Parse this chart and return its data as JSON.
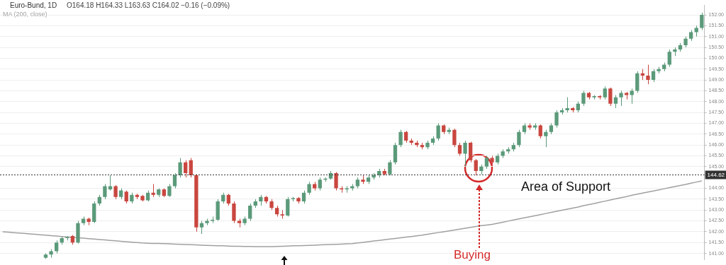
{
  "chart_data": {
    "type": "candlestick",
    "title": "Euro-Bund, 1D",
    "subtitle": "O164.18 H164.33 L163.63 C164.02 −0.16 (−0.09%)",
    "categories": [
      null,
      null,
      null,
      null,
      null,
      null,
      null,
      null,
      null,
      null,
      null,
      null,
      null,
      null,
      null,
      null,
      null,
      null,
      null,
      null,
      null,
      null,
      null,
      null,
      null,
      null,
      null,
      null,
      null,
      null,
      null,
      null,
      null,
      null,
      null,
      null,
      null,
      null,
      null,
      null,
      null,
      null,
      null,
      null,
      null,
      null,
      null,
      null,
      null,
      null,
      null,
      null,
      null,
      null,
      null,
      null,
      null,
      null,
      null,
      null,
      null,
      null,
      null,
      null,
      null,
      null,
      null,
      null,
      null,
      null,
      null,
      null,
      null,
      null,
      null,
      null,
      null,
      null,
      null,
      null,
      null,
      null,
      null,
      null,
      null,
      null,
      null,
      null,
      null,
      null,
      null,
      null,
      null,
      null,
      null,
      null,
      null,
      null,
      null,
      null,
      null,
      null,
      null,
      null,
      null,
      null,
      null,
      null,
      null,
      null,
      null,
      null,
      null,
      null,
      null,
      null,
      null,
      null,
      null,
      null,
      null,
      null,
      null,
      null,
      null,
      null,
      null,
      null,
      null,
      null,
      null
    ],
    "series": [
      {
        "colors": [
          null,
          null,
          null,
          null,
          null,
          null,
          null,
          null,
          "#5b9a7a",
          "#5b9a7a",
          "#5b9a7a",
          "#5b9a7a",
          "#5b9a7a",
          "#c9463f",
          "#5b9a7a",
          "#5b9a7a",
          "#c9463f",
          "#5b9a7a",
          "#5b9a7a",
          "#5b9a7a",
          "#5b9a7a",
          "#c9463f",
          "#5b9a7a",
          "#c9463f",
          "#5b9a7a",
          "#c9463f",
          "#c9463f",
          "#5b9a7a",
          "#c9463f",
          "#5b9a7a",
          "#c9463f",
          "#5b9a7a",
          "#5b9a7a",
          "#5b9a7a",
          "#c9463f",
          "#c9463f",
          "#c9463f",
          "#5b9a7a",
          "#5b9a7a",
          "#5b9a7a",
          "#5b9a7a",
          "#5b9a7a",
          "#c9463f",
          "#c9463f",
          "#c9463f",
          "#5b9a7a",
          "#5b9a7a",
          "#5b9a7a",
          "#5b9a7a",
          "#c9463f",
          "#c9463f",
          "#c9463f",
          "#c9463f",
          "#5b9a7a",
          "#5b9a7a",
          "#c9463f",
          "#5b9a7a",
          "#5b9a7a",
          "#c9463f",
          "#5b9a7a",
          "#5b9a7a",
          "#5b9a7a",
          "#c9463f",
          "#c9463f",
          "#5b9a7a",
          "#5b9a7a",
          "#5b9a7a",
          "#c9463f",
          "#5b9a7a",
          "#5b9a7a",
          "#5b9a7a",
          "#c9463f",
          "#5b9a7a",
          "#5b9a7a",
          "#5b9a7a",
          "#c9463f",
          "#c9463f",
          "#c9463f",
          "#c9463f",
          "#5b9a7a",
          "#5b9a7a",
          "#5b9a7a",
          "#c9463f",
          "#5b9a7a",
          "#c9463f",
          "#c9463f",
          "#5b9a7a",
          "#c9463f",
          "#c9463f",
          "#5b9a7a",
          "#5b9a7a",
          "#c9463f",
          "#5b9a7a",
          "#5b9a7a",
          "#5b9a7a",
          "#5b9a7a",
          "#5b9a7a",
          "#5b9a7a",
          "#c9463f",
          "#5b9a7a",
          "#c9463f",
          "#5b9a7a",
          "#5b9a7a",
          "#5b9a7a",
          "#5b9a7a",
          "#5b9a7a",
          "#c9463f",
          "#5b9a7a",
          "#5b9a7a",
          "#c9463f",
          "#5b9a7a",
          "#c9463f",
          "#5b9a7a",
          "#c9463f",
          "#5b9a7a",
          "#5b9a7a",
          "#c9463f",
          "#5b9a7a",
          "#5b9a7a",
          "#c9463f",
          "#c9463f",
          "#5b9a7a",
          "#5b9a7a",
          "#5b9a7a",
          "#5b9a7a",
          "#5b9a7a",
          "#5b9a7a",
          "#5b9a7a",
          "#5b9a7a",
          "#5b9a7a",
          "#5b9a7a"
        ],
        "ohlc": [
          null,
          null,
          null,
          null,
          null,
          null,
          null,
          null,
          [
            140.8,
            141.0,
            140.75,
            140.95
          ],
          [
            140.95,
            141.2,
            140.8,
            141.1
          ],
          [
            141.1,
            141.6,
            141.0,
            141.5
          ],
          [
            141.5,
            141.8,
            141.4,
            141.7
          ],
          [
            141.7,
            141.8,
            141.6,
            141.75
          ],
          [
            141.8,
            141.85,
            141.4,
            141.5
          ],
          [
            141.5,
            142.5,
            141.45,
            142.4
          ],
          [
            142.4,
            142.7,
            142.3,
            142.6
          ],
          [
            142.6,
            142.65,
            142.3,
            142.45
          ],
          [
            142.45,
            143.4,
            142.4,
            143.3
          ],
          [
            143.3,
            143.7,
            143.2,
            143.6
          ],
          [
            143.6,
            144.2,
            143.5,
            144.1
          ],
          [
            143.95,
            144.6,
            143.9,
            144.1
          ],
          [
            144.1,
            144.15,
            143.5,
            143.6
          ],
          [
            143.6,
            144.0,
            143.5,
            143.9
          ],
          [
            143.85,
            143.9,
            143.3,
            143.4
          ],
          [
            143.4,
            143.8,
            143.3,
            143.7
          ],
          [
            143.7,
            143.75,
            143.5,
            143.6
          ],
          [
            143.65,
            143.7,
            143.4,
            143.45
          ],
          [
            143.45,
            143.9,
            143.4,
            143.8
          ],
          [
            143.8,
            144.2,
            143.6,
            143.7
          ],
          [
            143.7,
            144.0,
            143.6,
            143.95
          ],
          [
            143.95,
            144.0,
            143.6,
            143.65
          ],
          [
            143.65,
            144.2,
            143.6,
            144.1
          ],
          [
            144.1,
            144.7,
            144.0,
            144.6
          ],
          [
            144.6,
            145.4,
            144.5,
            145.2
          ],
          [
            145.2,
            145.3,
            144.5,
            144.7
          ],
          [
            145.3,
            145.4,
            144.5,
            144.6
          ],
          [
            144.6,
            144.65,
            142.0,
            142.2
          ],
          [
            142.2,
            142.5,
            141.9,
            142.4
          ],
          [
            142.4,
            142.6,
            142.3,
            142.5
          ],
          [
            142.5,
            142.7,
            142.4,
            142.55
          ],
          [
            142.55,
            143.5,
            142.5,
            143.4
          ],
          [
            143.4,
            143.8,
            143.3,
            143.7
          ],
          [
            143.7,
            143.75,
            143.2,
            143.3
          ],
          [
            143.3,
            143.4,
            142.4,
            142.5
          ],
          [
            142.5,
            142.6,
            142.2,
            142.4
          ],
          [
            142.4,
            142.7,
            142.3,
            142.6
          ],
          [
            142.6,
            143.3,
            142.5,
            143.2
          ],
          [
            143.2,
            143.5,
            143.1,
            143.4
          ],
          [
            143.4,
            143.7,
            143.2,
            143.6
          ],
          [
            143.6,
            143.65,
            143.3,
            143.4
          ],
          [
            143.4,
            143.5,
            143.0,
            143.1
          ],
          [
            143.1,
            143.2,
            142.7,
            142.8
          ],
          [
            142.8,
            143.0,
            142.6,
            142.75
          ],
          [
            142.75,
            143.6,
            142.7,
            143.5
          ],
          [
            143.5,
            143.6,
            143.4,
            143.55
          ],
          [
            143.55,
            143.6,
            143.3,
            143.4
          ],
          [
            143.4,
            143.9,
            143.3,
            143.8
          ],
          [
            143.8,
            144.3,
            143.7,
            144.2
          ],
          [
            144.2,
            144.3,
            143.9,
            144.0
          ],
          [
            144.0,
            144.5,
            143.9,
            144.4
          ],
          [
            144.4,
            144.5,
            144.3,
            144.45
          ],
          [
            144.45,
            144.8,
            144.4,
            144.7
          ],
          [
            144.7,
            144.75,
            143.9,
            144.0
          ],
          [
            144.0,
            144.1,
            143.8,
            143.95
          ],
          [
            143.95,
            144.1,
            143.8,
            144.0
          ],
          [
            144.0,
            144.2,
            143.9,
            144.1
          ],
          [
            144.1,
            144.5,
            144.0,
            144.4
          ],
          [
            144.4,
            144.6,
            144.2,
            144.3
          ],
          [
            144.3,
            144.6,
            144.2,
            144.5
          ],
          [
            144.5,
            144.7,
            144.4,
            144.6
          ],
          [
            144.6,
            144.9,
            144.5,
            144.8
          ],
          [
            144.8,
            144.9,
            144.6,
            144.65
          ],
          [
            144.65,
            145.3,
            144.6,
            145.2
          ],
          [
            145.2,
            146.1,
            145.1,
            146.0
          ],
          [
            146.0,
            146.7,
            145.9,
            146.6
          ],
          [
            146.6,
            146.65,
            146.1,
            146.2
          ],
          [
            146.2,
            146.3,
            146.0,
            146.1
          ],
          [
            146.1,
            146.2,
            145.9,
            146.0
          ],
          [
            146.0,
            146.1,
            145.8,
            145.9
          ],
          [
            145.9,
            146.2,
            145.8,
            146.1
          ],
          [
            146.1,
            146.4,
            146.0,
            146.3
          ],
          [
            146.3,
            147.0,
            146.2,
            146.9
          ],
          [
            146.9,
            146.95,
            146.5,
            146.6
          ],
          [
            146.6,
            146.8,
            146.5,
            146.7
          ],
          [
            146.7,
            146.75,
            145.9,
            146.0
          ],
          [
            146.0,
            146.1,
            145.5,
            145.6
          ],
          [
            145.6,
            146.2,
            145.0,
            146.1
          ],
          [
            146.1,
            146.15,
            145.2,
            145.3
          ],
          [
            145.3,
            145.35,
            144.6,
            144.8
          ],
          [
            144.8,
            145.1,
            144.65,
            145.0
          ],
          [
            145.0,
            145.5,
            144.9,
            145.4
          ],
          [
            145.4,
            145.5,
            145.1,
            145.2
          ],
          [
            145.2,
            145.6,
            145.1,
            145.5
          ],
          [
            145.5,
            145.8,
            145.4,
            145.7
          ],
          [
            145.7,
            145.9,
            145.6,
            145.8
          ],
          [
            145.8,
            146.1,
            145.7,
            146.0
          ],
          [
            146.0,
            146.7,
            145.9,
            146.6
          ],
          [
            146.6,
            147.0,
            146.5,
            146.9
          ],
          [
            146.9,
            147.0,
            146.7,
            146.8
          ],
          [
            146.8,
            147.0,
            146.7,
            146.9
          ],
          [
            146.9,
            146.95,
            146.3,
            146.4
          ],
          [
            146.4,
            146.7,
            145.9,
            146.6
          ],
          [
            146.6,
            147.0,
            146.5,
            146.9
          ],
          [
            146.9,
            147.6,
            146.8,
            147.5
          ],
          [
            147.5,
            147.7,
            147.4,
            147.6
          ],
          [
            147.6,
            148.2,
            147.5,
            147.7
          ],
          [
            147.7,
            147.75,
            147.5,
            147.6
          ],
          [
            147.6,
            148.0,
            147.5,
            147.9
          ],
          [
            147.9,
            148.5,
            147.8,
            148.4
          ],
          [
            148.4,
            148.45,
            148.1,
            148.2
          ],
          [
            148.2,
            148.3,
            148.1,
            148.25
          ],
          [
            148.25,
            148.3,
            148.1,
            148.2
          ],
          [
            148.2,
            148.7,
            148.1,
            148.6
          ],
          [
            148.6,
            148.65,
            147.8,
            147.9
          ],
          [
            147.9,
            148.3,
            147.7,
            148.2
          ],
          [
            148.2,
            148.5,
            147.8,
            148.4
          ],
          [
            148.4,
            148.45,
            148.1,
            148.3
          ],
          [
            148.3,
            148.6,
            147.9,
            148.5
          ],
          [
            148.5,
            149.4,
            148.4,
            149.3
          ],
          [
            149.3,
            149.5,
            149.0,
            149.2
          ],
          [
            149.2,
            149.7,
            148.8,
            149.0
          ],
          [
            149.0,
            149.5,
            148.9,
            149.4
          ],
          [
            149.4,
            149.6,
            149.3,
            149.5
          ],
          [
            149.5,
            149.8,
            149.4,
            149.7
          ],
          [
            149.7,
            150.4,
            149.6,
            150.3
          ],
          [
            150.3,
            150.5,
            150.1,
            150.4
          ],
          [
            150.4,
            150.7,
            150.3,
            150.6
          ],
          [
            150.6,
            151.0,
            150.5,
            150.9
          ],
          [
            150.9,
            151.3,
            150.8,
            151.2
          ],
          [
            151.2,
            151.5,
            151.0,
            151.4
          ],
          [
            151.4,
            152.1,
            151.3,
            152.0
          ]
        ]
      },
      {
        "type": "line",
        "name": "MA (200, close)",
        "color": "#a0a0a0",
        "values": [
          142.0,
          141.98,
          141.96,
          141.94,
          141.92,
          141.9,
          141.88,
          141.86,
          141.84,
          141.82,
          141.8,
          141.78,
          141.76,
          141.74,
          141.72,
          141.7,
          141.68,
          141.66,
          141.64,
          141.62,
          141.6,
          141.58,
          141.56,
          141.54,
          141.52,
          141.5,
          141.48,
          141.47,
          141.46,
          141.46,
          141.45,
          141.44,
          141.43,
          141.42,
          141.41,
          141.4,
          141.39,
          141.38,
          141.37,
          141.36,
          141.35,
          141.35,
          141.34,
          141.33,
          141.33,
          141.32,
          141.32,
          141.31,
          141.31,
          141.31,
          141.31,
          141.32,
          141.33,
          141.34,
          141.35,
          141.35,
          141.36,
          141.37,
          141.38,
          141.39,
          141.4,
          141.41,
          141.42,
          141.43,
          141.44,
          141.45,
          141.48,
          141.51,
          141.54,
          141.57,
          141.6,
          141.63,
          141.66,
          141.69,
          141.72,
          141.75,
          141.78,
          141.81,
          141.84,
          141.88,
          141.92,
          141.96,
          142.0,
          142.04,
          142.08,
          142.12,
          142.16,
          142.2,
          142.24,
          142.28,
          142.31,
          142.34,
          142.39,
          142.44,
          142.49,
          142.54,
          142.59,
          142.64,
          142.69,
          142.74,
          142.79,
          142.84,
          142.89,
          142.94,
          142.99,
          143.04,
          143.09,
          143.14,
          143.2,
          143.25,
          143.3,
          143.36,
          143.41,
          143.46,
          143.52,
          143.57,
          143.62,
          143.68,
          143.73,
          143.78,
          143.83,
          143.88,
          143.93,
          143.98,
          144.03,
          144.08,
          144.13,
          144.18,
          144.24,
          144.29,
          144.34
        ]
      }
    ],
    "ylim": [
      140.7,
      152.45
    ],
    "yticks": [
      {
        "value": 141,
        "label": "141.00"
      },
      {
        "value": 141.5,
        "label": "141.50"
      },
      {
        "value": 142,
        "label": "142.00"
      },
      {
        "value": 142.5,
        "label": "142.50"
      },
      {
        "value": 143,
        "label": "143.00"
      },
      {
        "value": 143.5,
        "label": "143.50"
      },
      {
        "value": 144,
        "label": "144.00"
      },
      {
        "value": 145,
        "label": "145.00"
      },
      {
        "value": 145.5,
        "label": "145.50"
      },
      {
        "value": 146,
        "label": "146.00"
      },
      {
        "value": 146.5,
        "label": "146.50"
      },
      {
        "value": 147,
        "label": "147.00"
      },
      {
        "value": 147.5,
        "label": "147.50"
      },
      {
        "value": 148,
        "label": "148.00"
      },
      {
        "value": 148.5,
        "label": "148.50"
      },
      {
        "value": 149,
        "label": "149.00"
      },
      {
        "value": 149.5,
        "label": "149.50"
      },
      {
        "value": 150,
        "label": "150.00"
      },
      {
        "value": 150.5,
        "label": "150.50"
      },
      {
        "value": 151,
        "label": "151.00"
      },
      {
        "value": 151.5,
        "label": "151.50"
      },
      {
        "value": 152,
        "label": "152.00"
      }
    ],
    "ref_lines": [
      {
        "axis": "y",
        "value": 144.62,
        "label": "144.62",
        "color": "#333333",
        "line_style": "dotted"
      }
    ],
    "annotations": [
      "Area of Support",
      "Buying"
    ],
    "grid": "y",
    "tick_labels": "y",
    "legend": false
  }
}
